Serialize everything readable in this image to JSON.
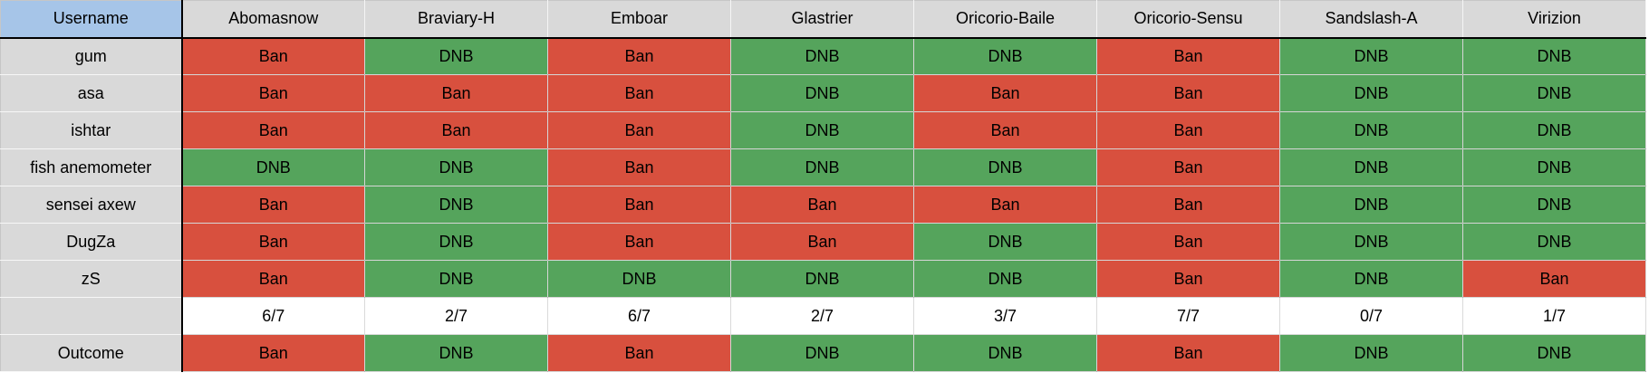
{
  "colors": {
    "ban": "#d8503e",
    "dnb": "#55a45c",
    "corner_bg": "#a6c5e8",
    "header_bg": "#d9d9d9",
    "tally_bg": "#ffffff"
  },
  "table": {
    "corner_label": "Username",
    "columns": [
      "Abomasnow",
      "Braviary-H",
      "Emboar",
      "Glastrier",
      "Oricorio-Baile",
      "Oricorio-Sensu",
      "Sandslash-A",
      "Virizion"
    ],
    "rows": [
      {
        "username": "gum",
        "votes": [
          "Ban",
          "DNB",
          "Ban",
          "DNB",
          "DNB",
          "Ban",
          "DNB",
          "DNB"
        ]
      },
      {
        "username": "asa",
        "votes": [
          "Ban",
          "Ban",
          "Ban",
          "DNB",
          "Ban",
          "Ban",
          "DNB",
          "DNB"
        ]
      },
      {
        "username": "ishtar",
        "votes": [
          "Ban",
          "Ban",
          "Ban",
          "DNB",
          "Ban",
          "Ban",
          "DNB",
          "DNB"
        ]
      },
      {
        "username": "fish anemometer",
        "votes": [
          "DNB",
          "DNB",
          "Ban",
          "DNB",
          "DNB",
          "Ban",
          "DNB",
          "DNB"
        ]
      },
      {
        "username": "sensei axew",
        "votes": [
          "Ban",
          "DNB",
          "Ban",
          "Ban",
          "Ban",
          "Ban",
          "DNB",
          "DNB"
        ]
      },
      {
        "username": "DugZa",
        "votes": [
          "Ban",
          "DNB",
          "Ban",
          "Ban",
          "DNB",
          "Ban",
          "DNB",
          "DNB"
        ]
      },
      {
        "username": "zS",
        "votes": [
          "Ban",
          "DNB",
          "DNB",
          "DNB",
          "DNB",
          "Ban",
          "DNB",
          "Ban"
        ]
      }
    ],
    "tally": {
      "username": "",
      "values": [
        "6/7",
        "2/7",
        "6/7",
        "2/7",
        "3/7",
        "7/7",
        "0/7",
        "1/7"
      ]
    },
    "outcome": {
      "label": "Outcome",
      "votes": [
        "Ban",
        "DNB",
        "Ban",
        "DNB",
        "DNB",
        "Ban",
        "DNB",
        "DNB"
      ]
    }
  }
}
